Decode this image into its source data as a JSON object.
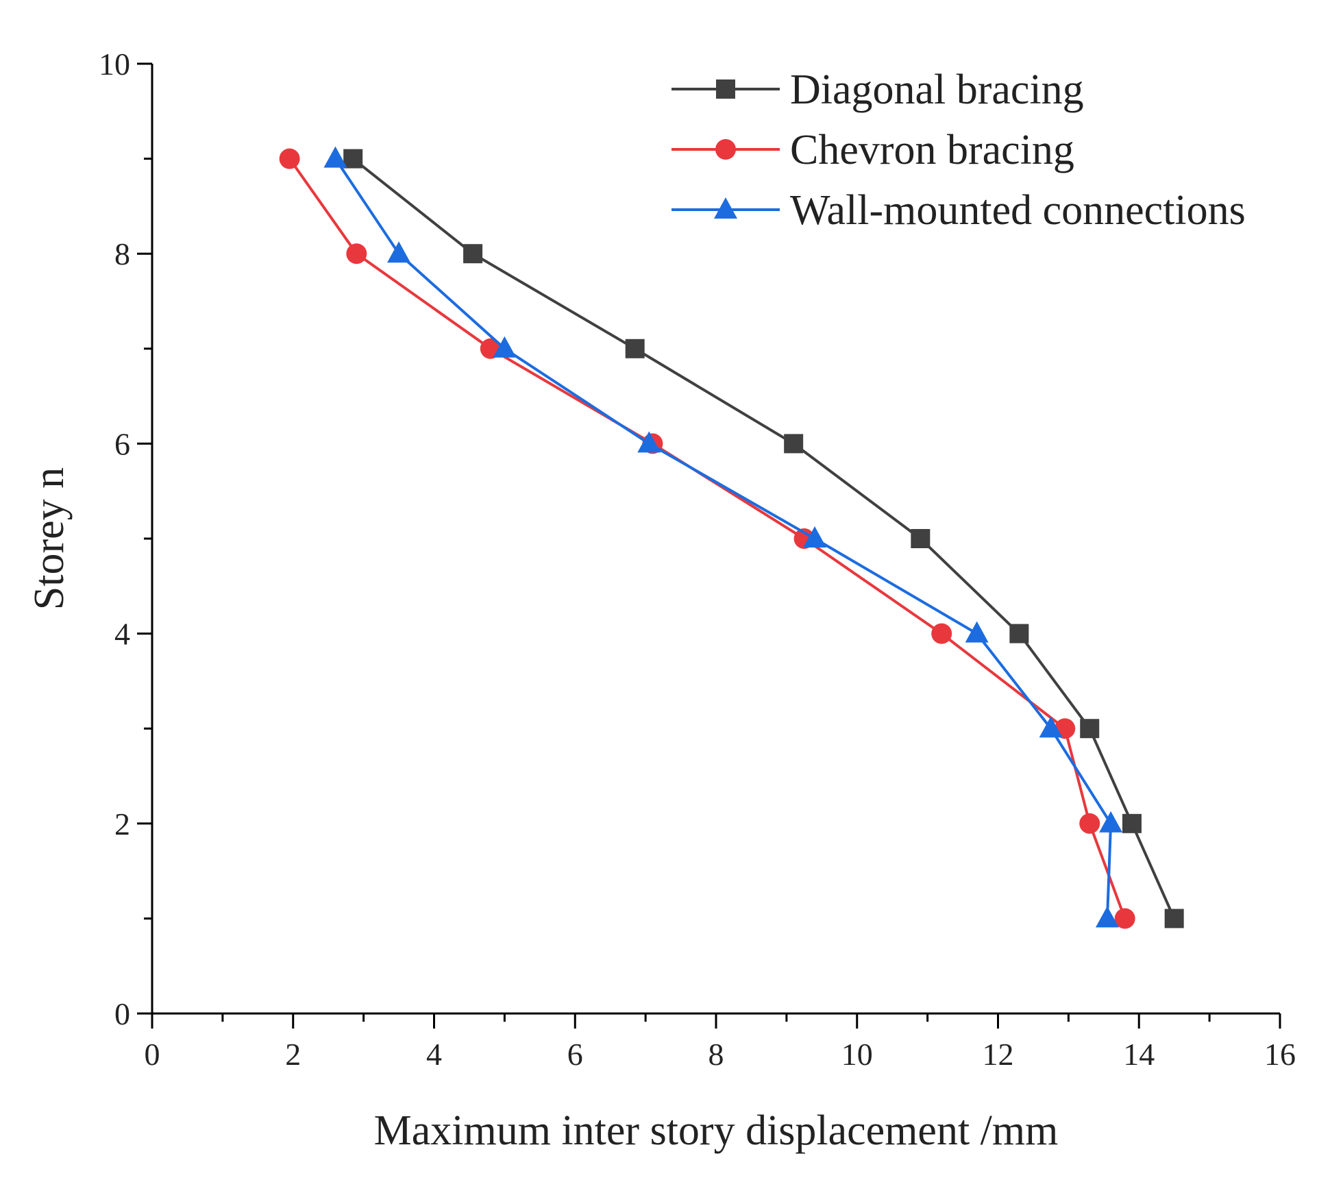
{
  "chart_data": {
    "type": "line",
    "title": "",
    "xlabel": "Maximum inter story displacement /mm",
    "ylabel": "Storey n",
    "xlim": [
      0,
      16
    ],
    "ylim": [
      0,
      10
    ],
    "x_ticks": [
      "0",
      "2",
      "4",
      "6",
      "8",
      "10",
      "12",
      "14",
      "16"
    ],
    "y_ticks": [
      "0",
      "2",
      "4",
      "6",
      "8",
      "10"
    ],
    "grid": false,
    "legend_position": "top-right",
    "series": [
      {
        "name": "Diagonal bracing",
        "color": "#404040",
        "marker": "square",
        "x": [
          14.5,
          13.9,
          13.3,
          12.3,
          10.9,
          9.1,
          6.85,
          4.55,
          2.85
        ],
        "y": [
          1,
          2,
          3,
          4,
          5,
          6,
          7,
          8,
          9
        ]
      },
      {
        "name": "Chevron bracing",
        "color": "#e8383d",
        "marker": "circle",
        "x": [
          13.8,
          13.3,
          12.95,
          11.2,
          9.25,
          7.1,
          4.8,
          2.9,
          1.95
        ],
        "y": [
          1,
          2,
          3,
          4,
          5,
          6,
          7,
          8,
          9
        ]
      },
      {
        "name": "Wall-mounted connections",
        "color": "#1c6ce0",
        "marker": "triangle",
        "x": [
          13.55,
          13.6,
          12.75,
          11.7,
          9.4,
          7.05,
          5.0,
          3.5,
          2.6
        ],
        "y": [
          1,
          2,
          3,
          4,
          5,
          6,
          7,
          8,
          9
        ]
      }
    ]
  }
}
